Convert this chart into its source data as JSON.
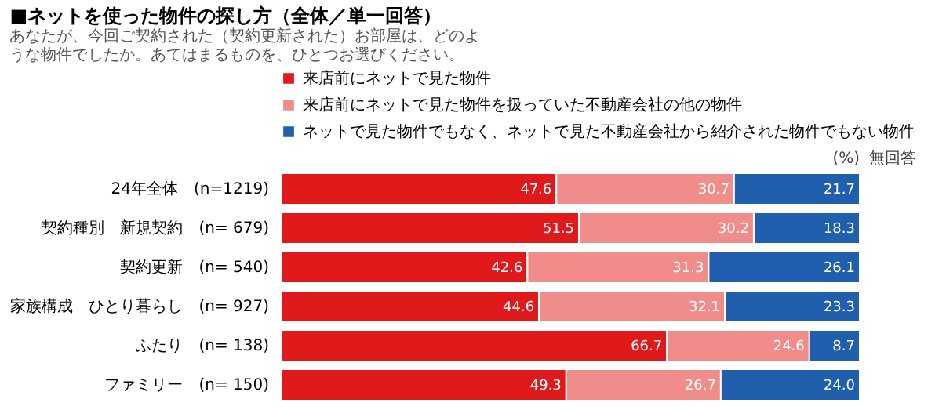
{
  "chart_data": {
    "type": "bar",
    "orientation": "horizontal",
    "stacked": true,
    "title": "■ネットを使った物件の探し方（全体／単一回答）",
    "subtitle": "あなたが、今回ご契約された（契約更新された）お部屋は、どのような物件でしたか。あてはまるものを、ひとつお選びください。",
    "categories": [
      "24年全体　(n=1219)",
      "契約種別　新規契約　(n= 679)",
      "契約更新　(n= 540)",
      "家族構成　ひとり暮らし　(n= 927)",
      "ふたり　(n= 138)",
      "ファミリー　(n= 150)"
    ],
    "series": [
      {
        "name": "来店前にネットで見た物件",
        "color": "#e0191b",
        "values": [
          47.6,
          51.5,
          42.6,
          44.6,
          66.7,
          49.3
        ]
      },
      {
        "name": "来店前にネットで見た物件を扱っていた不動産会社の他の物件",
        "color": "#f08c8a",
        "values": [
          30.7,
          30.2,
          31.3,
          32.1,
          24.6,
          26.7
        ]
      },
      {
        "name": "ネットで見た物件でもなく、ネットで見た不動産会社から紹介された物件でもない物件",
        "color": "#1f5fad",
        "values": [
          21.7,
          18.3,
          26.1,
          23.3,
          8.7,
          24.0
        ],
        "value_labels": [
          "21.7",
          "18.3",
          "26.1",
          "23.3",
          "8.7",
          "24.0"
        ]
      }
    ],
    "xlim": [
      0,
      100
    ],
    "data_labels": true,
    "legend": "top",
    "annotations": [
      "(%)",
      "無回答"
    ]
  }
}
